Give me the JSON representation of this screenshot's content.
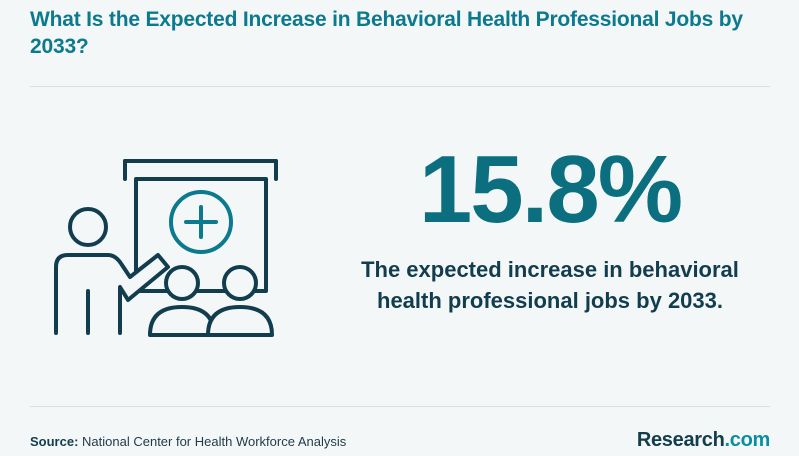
{
  "header": {
    "title": "What Is the Expected Increase in Behavioral Health Professional Jobs by 2033?"
  },
  "stat": {
    "value": "15.8%",
    "description": "The expected increase in behavioral health professional jobs by 2033."
  },
  "illustration": {
    "icon": "presentation-board-with-audience-icon",
    "stroke_color": "#123d4e",
    "accent_color": "#0b7a8e"
  },
  "footer": {
    "source_label": "Source:",
    "source_text": "National Center for Health Workforce Analysis",
    "logo_name": "Research",
    "logo_suffix": ".com"
  },
  "colors": {
    "title": "#0b7a8e",
    "big_number": "#0b6f80",
    "text_dark": "#123d4e",
    "background": "#f4f7f8"
  }
}
